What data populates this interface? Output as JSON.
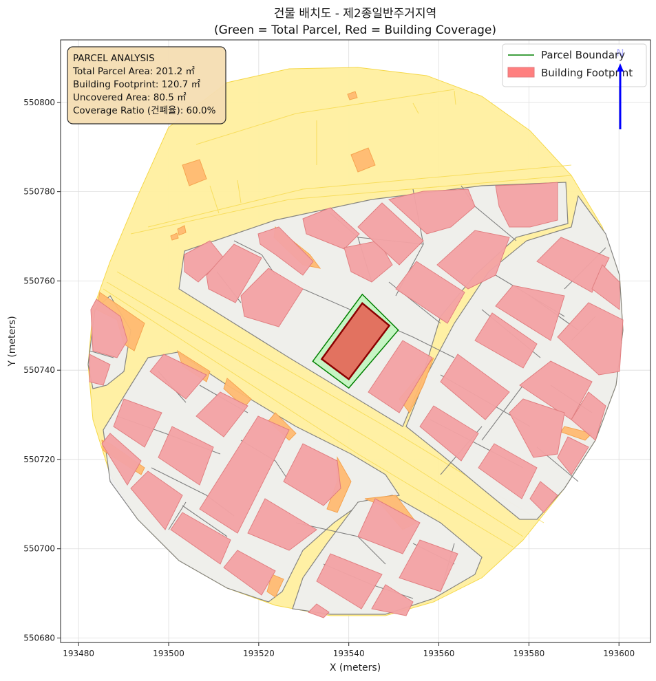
{
  "title": {
    "line1": "건물 배치도 - 제2종일반주거지역",
    "line2": "(Green = Total Parcel, Red = Building Coverage)"
  },
  "axes": {
    "xlabel": "X (meters)",
    "ylabel": "Y (meters)",
    "xlim": [
      193476,
      193607
    ],
    "ylim": [
      550679,
      550814
    ],
    "xticks": [
      "193480",
      "193500",
      "193520",
      "193540",
      "193560",
      "193580",
      "193600"
    ],
    "yticks": [
      "550680",
      "550700",
      "550720",
      "550740",
      "550760",
      "550780",
      "550800"
    ],
    "grid": true
  },
  "info_box": {
    "heading": "PARCEL ANALYSIS",
    "total_area": "Total Parcel Area: 201.2 ㎡",
    "footprint": "Building Footprint: 120.7 ㎡",
    "uncovered": "Uncovered Area: 80.5 ㎡",
    "coverage": "Coverage Ratio (건폐율): 60.0%"
  },
  "legend": {
    "placement": "top-right",
    "items": [
      {
        "label": "Parcel Boundary",
        "color": "#008000"
      },
      {
        "label": "Building Footprint",
        "color": "#ff7f7f"
      }
    ]
  },
  "north_arrow_label": "N",
  "colors": {
    "road": "#fff0a0",
    "road_edge": "#f5d640",
    "block": "#efefef",
    "block_edge": "#7f7f7f",
    "building": "#f4a3a5",
    "building_edge": "#e07a7c",
    "annex": "#ffbb72",
    "target_parcel_fill": "#c6f5c4",
    "target_parcel_edge": "#008000",
    "target_building_fill": "#e27260",
    "target_building_edge": "#8b0000",
    "north_arrow": "#0000ff"
  },
  "chart_data": {
    "type": "map",
    "target_parcel": {
      "area_m2": 201.2,
      "boundary": [
        [
          193532,
          550742
        ],
        [
          193543,
          550757
        ],
        [
          193551,
          550749
        ],
        [
          193540,
          550736
        ]
      ]
    },
    "target_building": {
      "area_m2": 120.7,
      "footprint": [
        [
          193534,
          550742.5
        ],
        [
          193543,
          550755
        ],
        [
          193549,
          550750
        ],
        [
          193540,
          550738
        ]
      ]
    },
    "coverage_ratio_percent": 60.0,
    "uncovered_area_m2": 80.5
  }
}
